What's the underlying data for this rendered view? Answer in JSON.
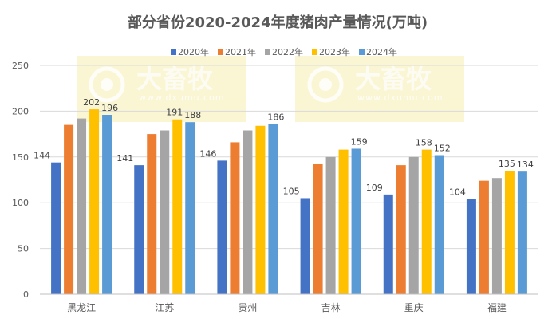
{
  "chart_data": {
    "type": "bar",
    "title": "部分省份2020-2024年度猪肉产量情况(万吨)",
    "categories": [
      "黑龙江",
      "江苏",
      "贵州",
      "吉林",
      "重庆",
      "福建"
    ],
    "series": [
      {
        "name": "2020年",
        "color": "#4472C4",
        "values": [
          144,
          141,
          146,
          105,
          109,
          104
        ],
        "labeled": true
      },
      {
        "name": "2021年",
        "color": "#ED7D31",
        "values": [
          185,
          175,
          166,
          142,
          141,
          124
        ],
        "labeled": false
      },
      {
        "name": "2022年",
        "color": "#A5A5A5",
        "values": [
          192,
          179,
          179,
          150,
          150,
          127
        ],
        "labeled": false
      },
      {
        "name": "2023年",
        "color": "#FFC000",
        "values": [
          202,
          191,
          184,
          158,
          158,
          135
        ],
        "labeled": [
          true,
          true,
          false,
          false,
          true,
          true
        ]
      },
      {
        "name": "2024年",
        "color": "#5B9BD5",
        "values": [
          196,
          188,
          186,
          159,
          152,
          134
        ],
        "labeled": true
      }
    ],
    "ylim": [
      0,
      250
    ],
    "yticks": [
      0,
      50,
      100,
      150,
      200,
      250
    ],
    "grid": true,
    "legend": "top",
    "watermark": {
      "brand": "大畜牧",
      "url": "www.dxumu.com"
    }
  }
}
